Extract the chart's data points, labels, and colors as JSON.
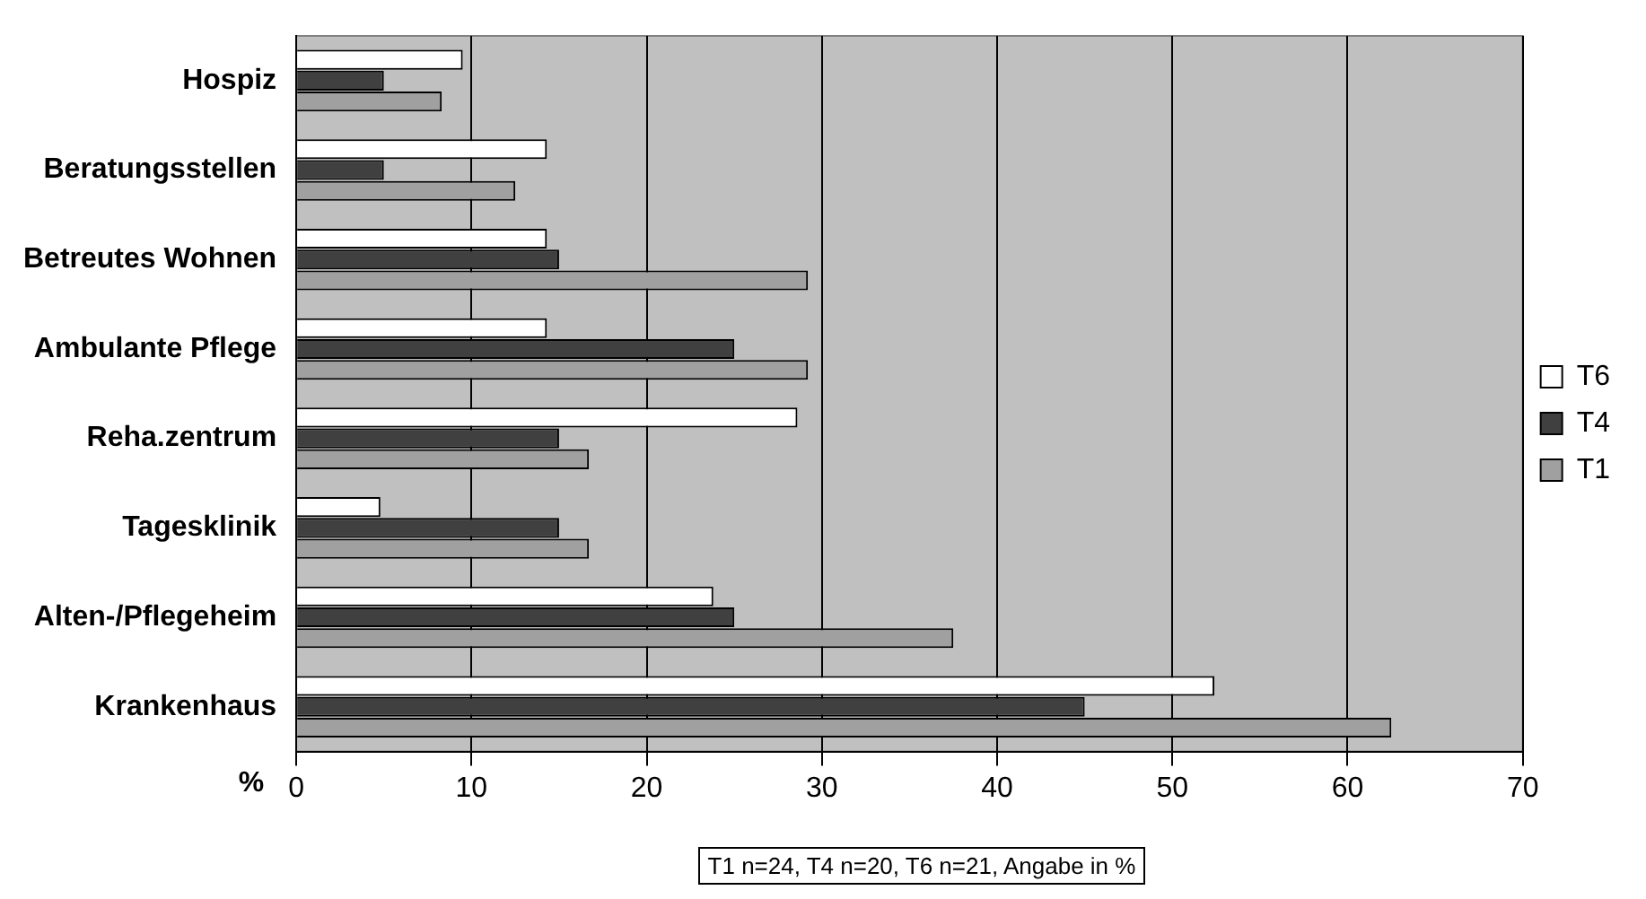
{
  "chart_data": {
    "type": "bar",
    "orientation": "horizontal",
    "xlabel": "%",
    "categories": [
      "Hospiz",
      "Beratungsstellen",
      "Betreutes Wohnen",
      "Ambulante Pflege",
      "Reha.zentrum",
      "Tagesklinik",
      "Alten-/Pflegeheim",
      "Krankenhaus"
    ],
    "series": [
      {
        "name": "T6",
        "color": "#ffffff",
        "values": [
          9.5,
          14.3,
          14.3,
          14.3,
          28.6,
          4.8,
          23.8,
          52.4
        ]
      },
      {
        "name": "T4",
        "color": "#404040",
        "values": [
          5,
          5,
          15,
          25,
          15,
          15,
          25,
          45
        ]
      },
      {
        "name": "T1",
        "color": "#a0a0a0",
        "values": [
          8.3,
          12.5,
          29.2,
          29.2,
          16.7,
          16.7,
          37.5,
          62.5
        ]
      }
    ],
    "xlim": [
      0,
      70
    ],
    "xticks": [
      0,
      10,
      20,
      30,
      40,
      50,
      60,
      70
    ],
    "grid": "x",
    "legend": "right",
    "annotations": [
      "T1 n=24, T4 n=20, T6 n=21, Angabe in %"
    ]
  }
}
